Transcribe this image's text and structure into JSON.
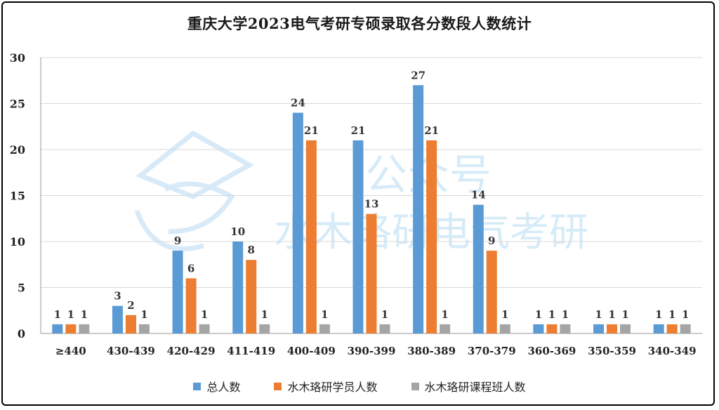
{
  "chart_data": {
    "type": "bar",
    "title": "重庆大学2023电气考研专硕录取各分数段人数统计",
    "categories": [
      "≥440",
      "430-439",
      "420-429",
      "411-419",
      "400-409",
      "390-399",
      "380-389",
      "370-379",
      "360-369",
      "350-359",
      "340-349"
    ],
    "series": [
      {
        "name": "总人数",
        "color": "#5b9bd5",
        "values": [
          1,
          3,
          9,
          10,
          24,
          21,
          27,
          14,
          1,
          1,
          1
        ]
      },
      {
        "name": "水木珞研学员人数",
        "color": "#ed7d31",
        "values": [
          1,
          2,
          6,
          8,
          21,
          13,
          21,
          9,
          1,
          1,
          1
        ]
      },
      {
        "name": "水木珞研课程班人数",
        "color": "#a5a5a5",
        "values": [
          1,
          1,
          1,
          1,
          1,
          1,
          1,
          1,
          1,
          1,
          1
        ]
      }
    ],
    "ylim": [
      0,
      30
    ],
    "yticks": [
      0,
      5,
      10,
      15,
      20,
      25,
      30
    ],
    "grid": true,
    "legend_position": "bottom"
  },
  "watermark": {
    "line1": "公众号",
    "line2": "水木珞研电气考研"
  }
}
